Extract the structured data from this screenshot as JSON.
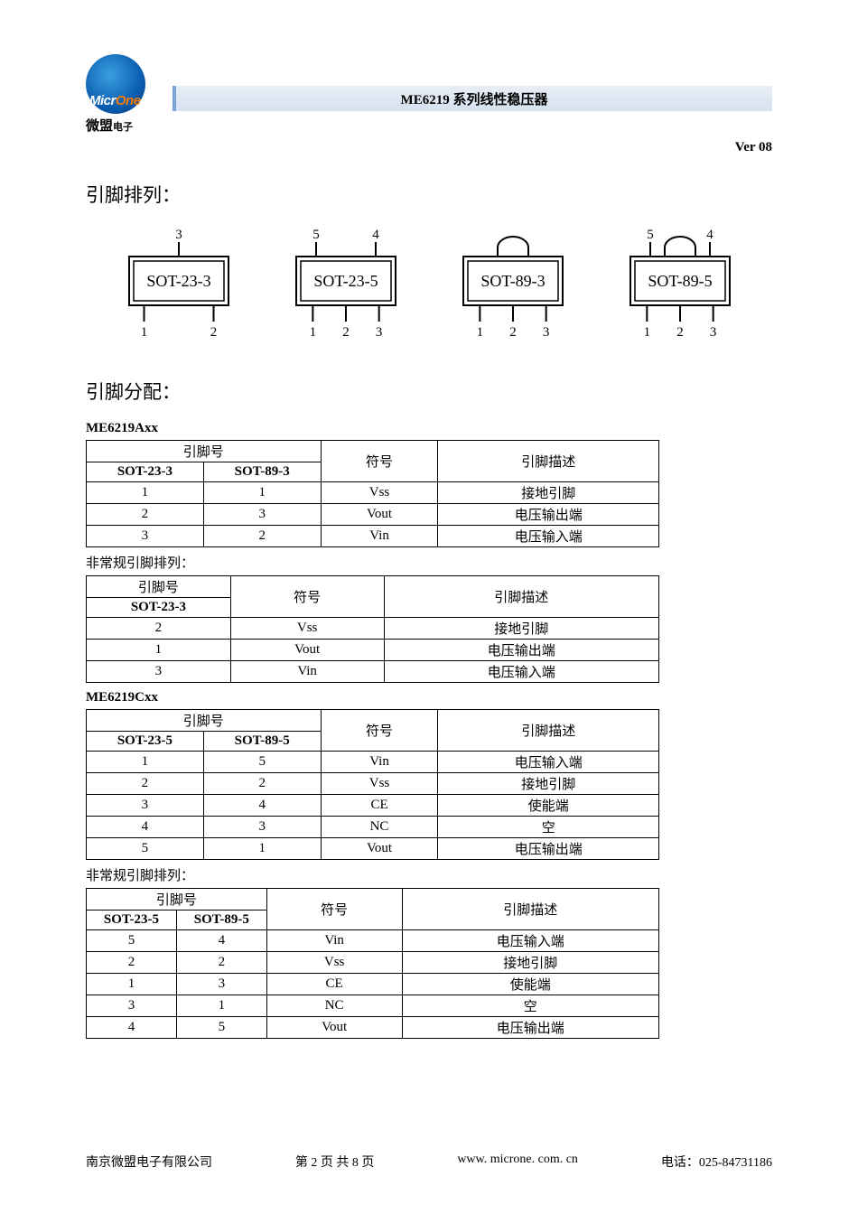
{
  "header": {
    "logo_latin": "Micr",
    "logo_latin2": "One",
    "logo_cn": "微盟",
    "logo_cn_suffix": "电子",
    "title": "ME6219 系列线性稳压器",
    "version": "Ver 08"
  },
  "sections": {
    "pin_layout_title": "引脚排列：",
    "pin_assign_title": "引脚分配："
  },
  "packages": [
    {
      "name": "SOT-23-3",
      "top_labels": [
        "3"
      ],
      "top_positions": [
        0.5
      ],
      "bottom_labels": [
        "1",
        "2"
      ],
      "tab": false
    },
    {
      "name": "SOT-23-5",
      "top_labels": [
        "5",
        "4"
      ],
      "top_positions": [
        0.2,
        0.8
      ],
      "bottom_labels": [
        "1",
        "2",
        "3"
      ],
      "tab": false
    },
    {
      "name": "SOT-89-3",
      "top_labels": [],
      "top_positions": [],
      "bottom_labels": [
        "1",
        "2",
        "3"
      ],
      "tab": true
    },
    {
      "name": "SOT-89-5",
      "top_labels": [
        "5",
        "4"
      ],
      "top_positions": [
        0.2,
        0.8
      ],
      "bottom_labels": [
        "1",
        "2",
        "3"
      ],
      "tab": true
    }
  ],
  "tables": {
    "axx_label": "ME6219Axx",
    "cxx_label": "ME6219Cxx",
    "irregular_label": "非常规引脚排列：",
    "col_pin_no": "引脚号",
    "col_symbol": "符号",
    "col_desc": "引脚描述",
    "axx_main": {
      "pkg1": "SOT-23-3",
      "pkg2": "SOT-89-3",
      "rows": [
        {
          "a": "1",
          "b": "1",
          "sym": "Vss",
          "desc": "接地引脚"
        },
        {
          "a": "2",
          "b": "3",
          "sym": "Vout",
          "desc": "电压输出端"
        },
        {
          "a": "3",
          "b": "2",
          "sym": "Vin",
          "desc": "电压输入端"
        }
      ]
    },
    "axx_alt": {
      "pkg1": "SOT-23-3",
      "rows": [
        {
          "a": "2",
          "sym": "Vss",
          "desc": "接地引脚"
        },
        {
          "a": "1",
          "sym": "Vout",
          "desc": "电压输出端"
        },
        {
          "a": "3",
          "sym": "Vin",
          "desc": "电压输入端"
        }
      ]
    },
    "cxx_main": {
      "pkg1": "SOT-23-5",
      "pkg2": "SOT-89-5",
      "rows": [
        {
          "a": "1",
          "b": "5",
          "sym": "Vin",
          "desc": "电压输入端"
        },
        {
          "a": "2",
          "b": "2",
          "sym": "Vss",
          "desc": "接地引脚"
        },
        {
          "a": "3",
          "b": "4",
          "sym": "CE",
          "desc": "使能端"
        },
        {
          "a": "4",
          "b": "3",
          "sym": "NC",
          "desc": "空"
        },
        {
          "a": "5",
          "b": "1",
          "sym": "Vout",
          "desc": "电压输出端"
        }
      ]
    },
    "cxx_alt": {
      "pkg1": "SOT-23-5",
      "pkg2": "SOT-89-5",
      "rows": [
        {
          "a": "5",
          "b": "4",
          "sym": "Vin",
          "desc": "电压输入端"
        },
        {
          "a": "2",
          "b": "2",
          "sym": "Vss",
          "desc": "接地引脚"
        },
        {
          "a": "1",
          "b": "3",
          "sym": "CE",
          "desc": "使能端"
        },
        {
          "a": "3",
          "b": "1",
          "sym": "NC",
          "desc": "空"
        },
        {
          "a": "4",
          "b": "5",
          "sym": "Vout",
          "desc": "电压输出端"
        }
      ]
    }
  },
  "footer": {
    "company": "南京微盟电子有限公司",
    "page": "第 2 页 共 8 页",
    "url": "www. microne. com. cn",
    "tel": "电话：025-84731186"
  },
  "style": {
    "table_border": "#000000",
    "titlebar_bg_top": "#e8eef6",
    "titlebar_bg_bottom": "#d6e2f0",
    "titlebar_accent": "#7aa5d6"
  }
}
